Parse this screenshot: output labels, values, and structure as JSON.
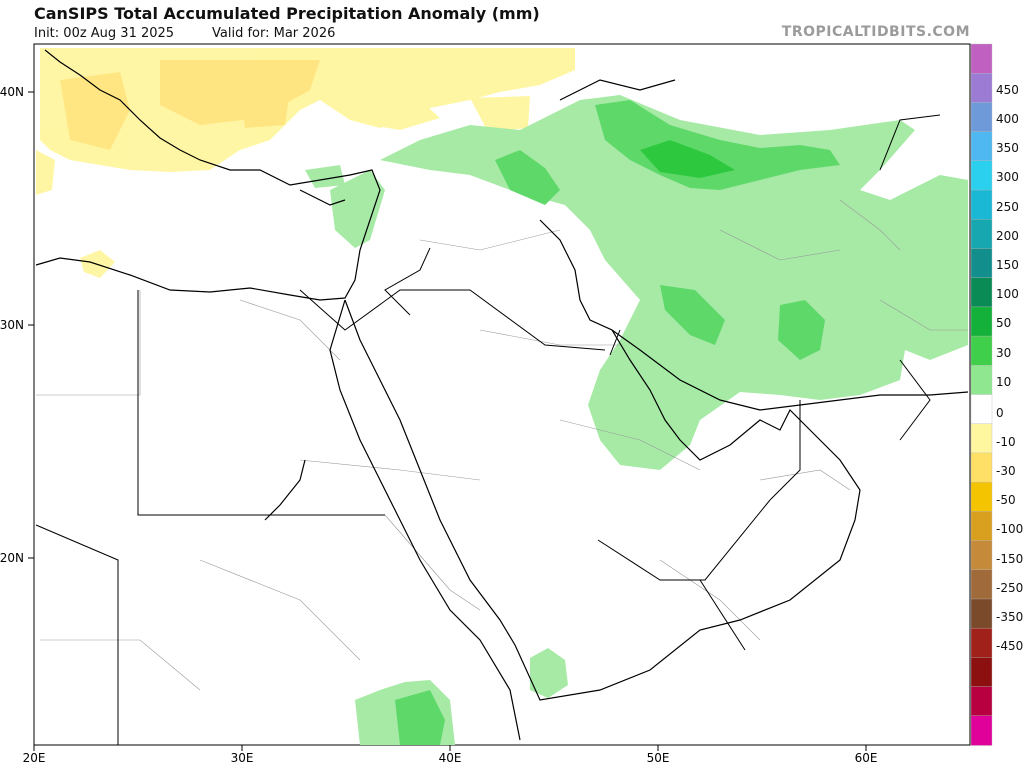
{
  "header": {
    "title": "CanSIPS Total Accumulated Precipitation Anomaly (mm)",
    "init": "Init: 00z Aug 31 2025",
    "valid": "Valid for: Mar 2026",
    "brand": "TROPICALTIDBITS.COM"
  },
  "map": {
    "region": "Middle East",
    "lon_range": [
      20,
      65
    ],
    "lat_range": [
      12,
      42
    ],
    "lat_ticks": [
      "40N",
      "30N",
      "20N"
    ],
    "lon_ticks": [
      "20E",
      "30E",
      "40E",
      "50E",
      "60E"
    ],
    "features": [
      {
        "kind": "dry",
        "level": "-10",
        "area": "Greece, Aegean, Turkey"
      },
      {
        "kind": "wet",
        "level": "10 to 30",
        "area": "Northern Iran, Caspian coast"
      },
      {
        "kind": "wet",
        "level": "10 to 30",
        "area": "Northern Iraq, Syria, Lebanon"
      },
      {
        "kind": "wet",
        "level": "10",
        "area": "Southern Iran, Persian Gulf, Afghanistan"
      },
      {
        "kind": "wet",
        "level": "10",
        "area": "Western Yemen, Ethiopia"
      }
    ]
  },
  "colorbar": {
    "labels": [
      "450",
      "400",
      "350",
      "300",
      "250",
      "200",
      "150",
      "100",
      "50",
      "30",
      "10",
      "0",
      "-10",
      "-30",
      "-50",
      "-100",
      "-150",
      "-250",
      "-350",
      "-450"
    ],
    "colors": [
      "#c060c0",
      "#9b7bd4",
      "#6f9ad9",
      "#4fb8f0",
      "#2ad0ee",
      "#1bb8d6",
      "#17a7b0",
      "#128f8c",
      "#0a8a55",
      "#13b13a",
      "#3fcf4a",
      "#8fe88f",
      "#ffffff",
      "#fff6a0",
      "#ffe066",
      "#f5c400",
      "#d9a020",
      "#c58a3a",
      "#a06a3a",
      "#7b4a2a",
      "#a0201a",
      "#8c1010",
      "#b80040",
      "#e0009a"
    ]
  }
}
